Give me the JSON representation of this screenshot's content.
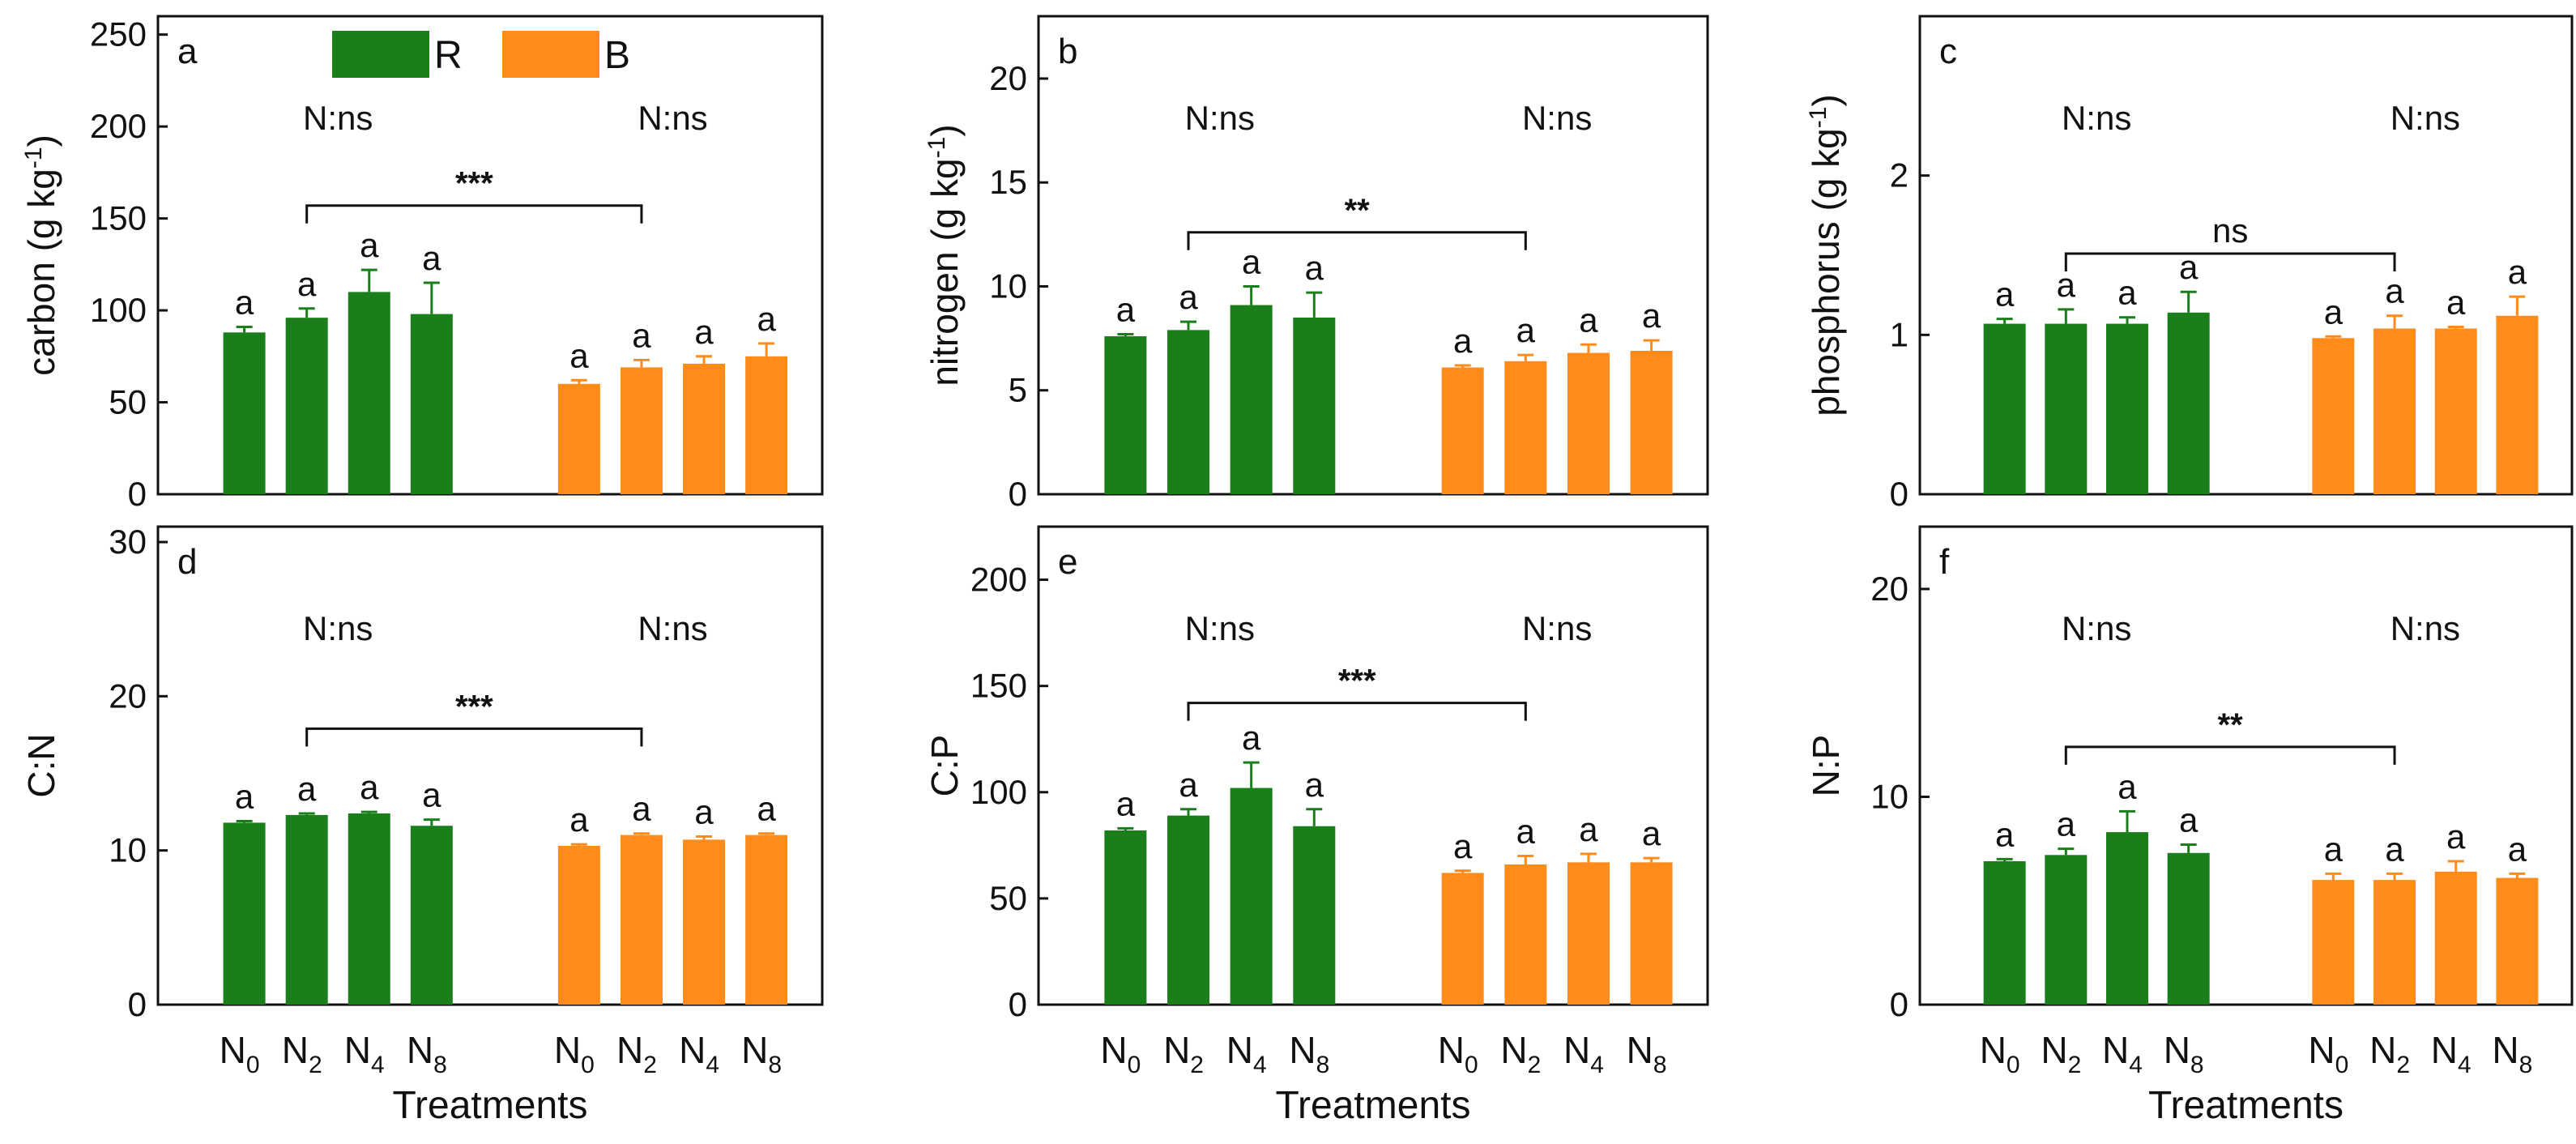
{
  "colors": {
    "R": "#1a7f1a",
    "B": "#ff8c1a",
    "axis": "#111111"
  },
  "legend": [
    {
      "label": "R",
      "color": "#1a7f1a"
    },
    {
      "label": "B",
      "color": "#ff8c1a"
    }
  ],
  "x_title": "Treatments",
  "chart_data": [
    {
      "panel": "a",
      "type": "bar",
      "ylabel": "carbon (g kg-1)",
      "ylabel_main": "carbon (g kg",
      "ylabel_sup": "-1",
      "ylabel_end": ")",
      "ylim": [
        0,
        260
      ],
      "yticks": [
        0,
        50,
        100,
        150,
        200,
        250
      ],
      "categories": [
        "N0",
        "N2",
        "N4",
        "N8"
      ],
      "series": [
        {
          "name": "R",
          "values": [
            88,
            96,
            110,
            98
          ],
          "errors": [
            3,
            5,
            12,
            17
          ],
          "letters": [
            "a",
            "a",
            "a",
            "a"
          ],
          "group_note": "N:ns"
        },
        {
          "name": "B",
          "values": [
            60,
            69,
            71,
            75
          ],
          "errors": [
            2,
            4,
            4,
            7
          ],
          "letters": [
            "a",
            "a",
            "a",
            "a"
          ],
          "group_note": "N:ns"
        }
      ],
      "comparison": {
        "label": "***",
        "y": 157
      }
    },
    {
      "panel": "b",
      "type": "bar",
      "ylabel": "nitrogen (g kg-1)",
      "ylabel_main": "nitrogen (g kg",
      "ylabel_sup": "-1",
      "ylabel_end": ")",
      "ylim": [
        0,
        23
      ],
      "yticks": [
        0,
        5,
        10,
        15,
        20
      ],
      "categories": [
        "N0",
        "N2",
        "N4",
        "N8"
      ],
      "series": [
        {
          "name": "R",
          "values": [
            7.6,
            7.9,
            9.1,
            8.5
          ],
          "errors": [
            0.1,
            0.4,
            0.9,
            1.2
          ],
          "letters": [
            "a",
            "a",
            "a",
            "a"
          ],
          "group_note": "N:ns"
        },
        {
          "name": "B",
          "values": [
            6.1,
            6.4,
            6.8,
            6.9
          ],
          "errors": [
            0.1,
            0.3,
            0.4,
            0.5
          ],
          "letters": [
            "a",
            "a",
            "a",
            "a"
          ],
          "group_note": "N:ns"
        }
      ],
      "comparison": {
        "label": "**",
        "y": 12.6
      }
    },
    {
      "panel": "c",
      "type": "bar",
      "ylabel": "phosphorus (g kg-1)",
      "ylabel_main": "phosphorus (g kg",
      "ylabel_sup": "-1",
      "ylabel_end": ")",
      "ylim": [
        0,
        3.0
      ],
      "yticks": [
        0,
        1,
        2
      ],
      "categories": [
        "N0",
        "N2",
        "N4",
        "N8"
      ],
      "series": [
        {
          "name": "R",
          "values": [
            1.07,
            1.07,
            1.07,
            1.14
          ],
          "errors": [
            0.03,
            0.09,
            0.04,
            0.13
          ],
          "letters": [
            "a",
            "a",
            "a",
            "a"
          ],
          "group_note": "N:ns"
        },
        {
          "name": "B",
          "values": [
            0.98,
            1.04,
            1.04,
            1.12
          ],
          "errors": [
            0.01,
            0.08,
            0.01,
            0.12
          ],
          "letters": [
            "a",
            "a",
            "a",
            "a"
          ],
          "group_note": "N:ns"
        }
      ],
      "comparison": {
        "label": "ns",
        "y": 1.51
      }
    },
    {
      "panel": "d",
      "type": "bar",
      "ylabel": "C:N",
      "ylim": [
        0,
        31
      ],
      "yticks": [
        0,
        10,
        20,
        30
      ],
      "categories": [
        "N0",
        "N2",
        "N4",
        "N8"
      ],
      "series": [
        {
          "name": "R",
          "values": [
            11.8,
            12.3,
            12.4,
            11.6
          ],
          "errors": [
            0.1,
            0.1,
            0.1,
            0.4
          ],
          "letters": [
            "a",
            "a",
            "a",
            "a"
          ],
          "group_note": "N:ns"
        },
        {
          "name": "B",
          "values": [
            10.3,
            11.0,
            10.7,
            11.0
          ],
          "errors": [
            0.1,
            0.1,
            0.2,
            0.1
          ],
          "letters": [
            "a",
            "a",
            "a",
            "a"
          ],
          "group_note": "N:ns"
        }
      ],
      "comparison": {
        "label": "***",
        "y": 17.9
      }
    },
    {
      "panel": "e",
      "type": "bar",
      "ylabel": "C:P",
      "ylim": [
        0,
        225
      ],
      "yticks": [
        0,
        50,
        100,
        150,
        200
      ],
      "categories": [
        "N0",
        "N2",
        "N4",
        "N8"
      ],
      "series": [
        {
          "name": "R",
          "values": [
            82,
            89,
            102,
            84
          ],
          "errors": [
            1,
            3,
            12,
            8
          ],
          "letters": [
            "a",
            "a",
            "a",
            "a"
          ],
          "group_note": "N:ns"
        },
        {
          "name": "B",
          "values": [
            62,
            66,
            67,
            67
          ],
          "errors": [
            1,
            4,
            4,
            2
          ],
          "letters": [
            "a",
            "a",
            "a",
            "a"
          ],
          "group_note": "N:ns"
        }
      ],
      "comparison": {
        "label": "***",
        "y": 142
      }
    },
    {
      "panel": "f",
      "type": "bar",
      "ylabel": "N:P",
      "ylim": [
        0,
        23
      ],
      "yticks": [
        0,
        10,
        20
      ],
      "categories": [
        "N0",
        "N2",
        "N4",
        "N8"
      ],
      "series": [
        {
          "name": "R",
          "values": [
            6.9,
            7.2,
            8.3,
            7.3
          ],
          "errors": [
            0.1,
            0.3,
            1.0,
            0.4
          ],
          "letters": [
            "a",
            "a",
            "a",
            "a"
          ],
          "group_note": "N:ns"
        },
        {
          "name": "B",
          "values": [
            6.0,
            6.0,
            6.4,
            6.1
          ],
          "errors": [
            0.3,
            0.3,
            0.5,
            0.2
          ],
          "letters": [
            "a",
            "a",
            "a",
            "a"
          ],
          "group_note": "N:ns"
        }
      ],
      "comparison": {
        "label": "**",
        "y": 12.4
      }
    }
  ]
}
